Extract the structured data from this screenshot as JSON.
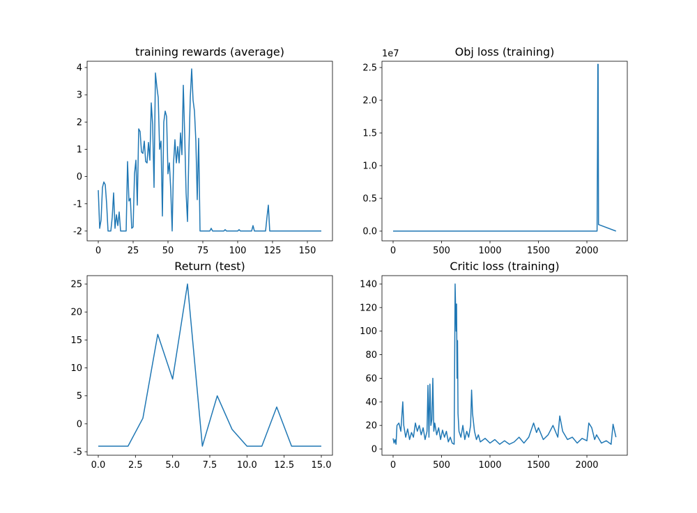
{
  "chart_data": [
    {
      "type": "line",
      "title": "training rewards (average)",
      "color": "#1f77b4",
      "x": [
        0,
        1,
        2,
        3,
        4,
        5,
        6,
        7,
        8,
        9,
        10,
        11,
        12,
        13,
        14,
        15,
        16,
        17,
        18,
        19,
        20,
        21,
        22,
        23,
        24,
        25,
        26,
        27,
        28,
        29,
        30,
        31,
        32,
        33,
        34,
        35,
        36,
        37,
        38,
        39,
        40,
        41,
        42,
        43,
        44,
        45,
        46,
        47,
        48,
        49,
        50,
        51,
        52,
        53,
        54,
        55,
        56,
        57,
        58,
        59,
        60,
        61,
        62,
        63,
        64,
        65,
        66,
        67,
        68,
        69,
        70,
        71,
        72,
        73,
        80,
        81,
        82,
        90,
        91,
        92,
        100,
        101,
        102,
        110,
        111,
        112,
        120,
        121,
        122,
        123,
        160
      ],
      "values": [
        -0.5,
        -1.9,
        -1.6,
        -0.4,
        -0.2,
        -0.3,
        -1.0,
        -2,
        -2,
        -2,
        -1.5,
        -0.6,
        -1.9,
        -1.4,
        -1.8,
        -1.3,
        -2,
        -2,
        -2,
        -2,
        -2,
        0.55,
        -0.9,
        -0.8,
        -1.9,
        -1.85,
        0.1,
        0.6,
        -1.05,
        1.75,
        1.65,
        0.9,
        0.85,
        1.3,
        0.55,
        0.5,
        1.25,
        0.6,
        2.7,
        1.9,
        -0.4,
        3.8,
        3.3,
        2.9,
        1.0,
        1.3,
        -1.45,
        2.0,
        2.4,
        2.2,
        0.1,
        0.5,
        -0.5,
        -2.0,
        0.5,
        1.35,
        0.5,
        1.1,
        0.5,
        1.6,
        0.8,
        3.35,
        1.5,
        -0.6,
        -1.65,
        0.9,
        2.9,
        3.95,
        2.8,
        2.4,
        1.3,
        -0.85,
        1.4,
        -2,
        -2,
        -1.9,
        -2,
        -2,
        -1.95,
        -2,
        -2,
        -1.95,
        -2,
        -2,
        -1.8,
        -2,
        -2,
        -1.5,
        -1.05,
        -2,
        -2
      ],
      "xlim": [
        -8,
        168
      ],
      "ylim": [
        -2.36,
        4.23
      ],
      "xticks": [
        0,
        25,
        50,
        75,
        100,
        125,
        150
      ],
      "yticks": [
        -2,
        -1,
        0,
        1,
        2,
        3,
        4
      ]
    },
    {
      "type": "line",
      "title": "Obj loss (training)",
      "color": "#1f77b4",
      "offset_text": "1e7",
      "x": [
        0,
        2105,
        2110,
        2113,
        2116,
        2120,
        2300
      ],
      "values": [
        0,
        0,
        1.4,
        2.55,
        2.55,
        0.1,
        0
      ],
      "xlim": [
        -115,
        2417
      ],
      "ylim": [
        -0.149,
        2.596
      ],
      "xticks": [
        0,
        500,
        1000,
        1500,
        2000
      ],
      "yticks": [
        {
          "value": 0,
          "label": "0.0"
        },
        {
          "value": 0.5,
          "label": "0.5"
        },
        {
          "value": 1,
          "label": "1.0"
        },
        {
          "value": 1.5,
          "label": "1.5"
        },
        {
          "value": 2,
          "label": "2.0"
        },
        {
          "value": 2.5,
          "label": "2.5"
        }
      ]
    },
    {
      "type": "line",
      "title": "Return (test)",
      "color": "#1f77b4",
      "x": [
        0,
        1,
        2,
        3,
        4,
        5,
        6,
        7,
        8,
        9,
        10,
        11,
        12,
        13,
        14,
        15
      ],
      "values": [
        -4,
        -4,
        -4,
        1,
        16,
        8,
        25,
        -4,
        5,
        -1,
        -4,
        -4,
        3,
        -4,
        -4,
        -4
      ],
      "xlim": [
        -0.75,
        15.75
      ],
      "ylim": [
        -5.62,
        26.5
      ],
      "xticks": [
        {
          "value": 0,
          "label": "0.0"
        },
        {
          "value": 2.5,
          "label": "2.5"
        },
        {
          "value": 5,
          "label": "5.0"
        },
        {
          "value": 7.5,
          "label": "7.5"
        },
        {
          "value": 10,
          "label": "10.0"
        },
        {
          "value": 12.5,
          "label": "12.5"
        },
        {
          "value": 15,
          "label": "15.0"
        }
      ],
      "yticks": [
        -5,
        0,
        5,
        10,
        15,
        20,
        25
      ]
    },
    {
      "type": "line",
      "title": "Critic loss (training)",
      "color": "#1f77b4",
      "x": [
        0,
        10,
        20,
        30,
        40,
        60,
        80,
        100,
        110,
        130,
        150,
        170,
        190,
        210,
        230,
        250,
        270,
        290,
        310,
        330,
        350,
        360,
        370,
        380,
        390,
        400,
        410,
        420,
        430,
        450,
        470,
        490,
        510,
        530,
        550,
        570,
        590,
        610,
        630,
        640,
        650,
        655,
        660,
        665,
        670,
        680,
        700,
        720,
        740,
        760,
        780,
        800,
        810,
        820,
        840,
        860,
        880,
        900,
        950,
        1000,
        1050,
        1100,
        1150,
        1200,
        1250,
        1300,
        1350,
        1400,
        1450,
        1480,
        1500,
        1550,
        1600,
        1650,
        1700,
        1720,
        1750,
        1800,
        1850,
        1900,
        1950,
        2000,
        2020,
        2050,
        2080,
        2100,
        2150,
        2200,
        2250,
        2270,
        2300
      ],
      "values": [
        9,
        5,
        8,
        4,
        20,
        22,
        15,
        40,
        20,
        10,
        17,
        8,
        14,
        10,
        22,
        15,
        20,
        12,
        18,
        8,
        15,
        54,
        10,
        55,
        20,
        25,
        60,
        15,
        22,
        12,
        18,
        8,
        16,
        10,
        15,
        6,
        10,
        5,
        4,
        140,
        100,
        123,
        60,
        92,
        30,
        15,
        10,
        20,
        8,
        15,
        10,
        20,
        50,
        30,
        15,
        8,
        12,
        6,
        9,
        5,
        8,
        4,
        7,
        4,
        6,
        10,
        5,
        10,
        22,
        14,
        18,
        8,
        12,
        20,
        10,
        28,
        15,
        8,
        10,
        5,
        9,
        7,
        22,
        18,
        8,
        12,
        5,
        7,
        4,
        21,
        10
      ],
      "xlim": [
        -115,
        2417
      ],
      "ylim": [
        -5.3,
        147.1
      ],
      "xticks": [
        0,
        500,
        1000,
        1500,
        2000
      ],
      "yticks": [
        0,
        20,
        40,
        60,
        80,
        100,
        120,
        140
      ]
    }
  ]
}
